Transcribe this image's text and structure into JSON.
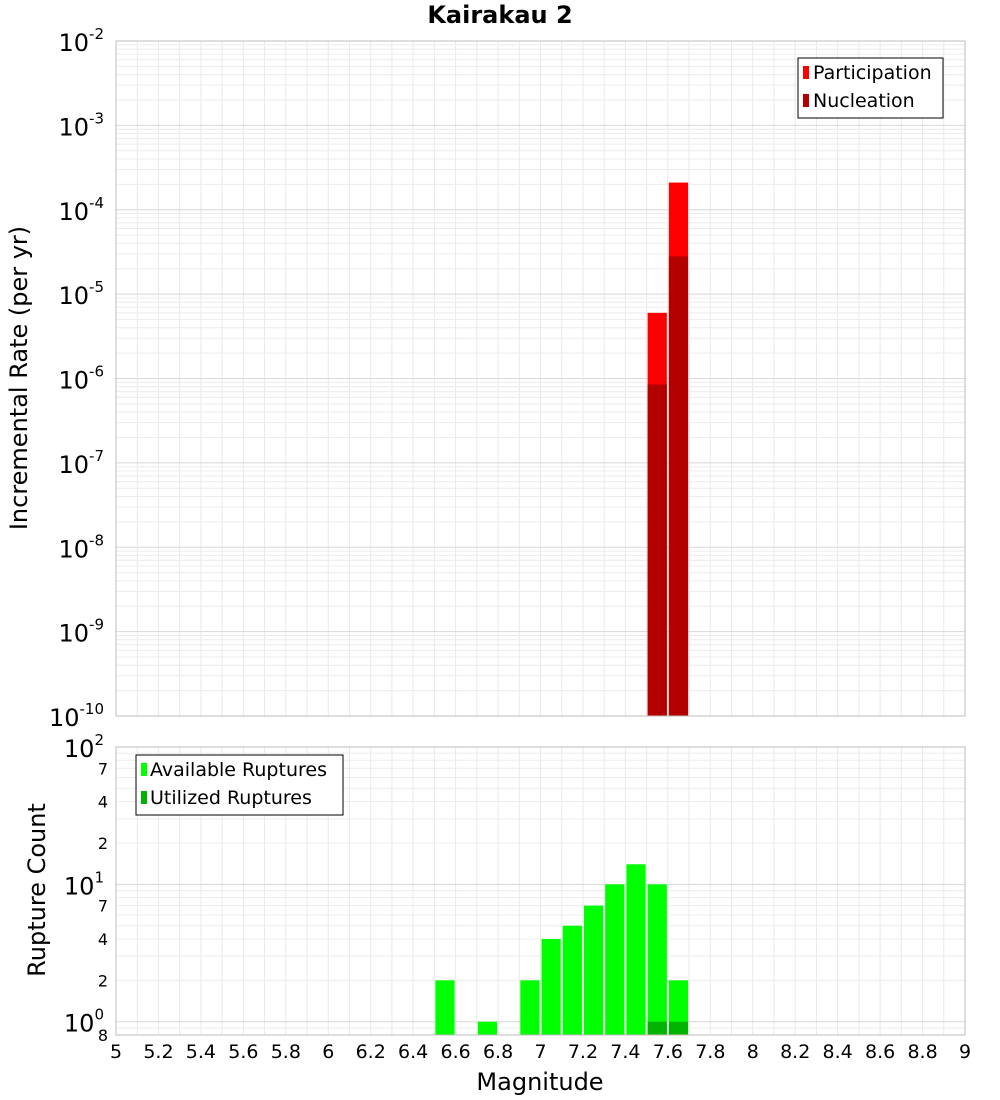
{
  "chart_data": [
    {
      "type": "bar",
      "title": "Kairakau 2",
      "ylabel": "Incremental Rate (per yr)",
      "yscale": "log",
      "ylim": [
        1e-10,
        0.01
      ],
      "xlim": [
        5,
        9
      ],
      "y_ticks": [
        {
          "base": "10",
          "exp": "-2"
        },
        {
          "base": "10",
          "exp": "-3"
        },
        {
          "base": "10",
          "exp": "-4"
        },
        {
          "base": "10",
          "exp": "-5"
        },
        {
          "base": "10",
          "exp": "-6"
        },
        {
          "base": "10",
          "exp": "-7"
        },
        {
          "base": "10",
          "exp": "-8"
        },
        {
          "base": "10",
          "exp": "-9"
        },
        {
          "base": "10",
          "exp": "-10"
        }
      ],
      "grid": true,
      "legend_position": "top-right",
      "series": [
        {
          "name": "Participation",
          "color": "#ff0000",
          "points": [
            {
              "x": 7.55,
              "y": 6e-06
            },
            {
              "x": 7.65,
              "y": 0.00021
            }
          ]
        },
        {
          "name": "Nucleation",
          "color": "#b30000",
          "points": [
            {
              "x": 7.55,
              "y": 8.5e-07
            },
            {
              "x": 7.65,
              "y": 2.8e-05
            }
          ]
        }
      ]
    },
    {
      "type": "bar",
      "xlabel": "Magnitude",
      "ylabel": "Rupture Count",
      "yscale": "log",
      "ylim": [
        0.8,
        100
      ],
      "xlim": [
        5,
        9
      ],
      "x_ticks": [
        "5",
        "5.2",
        "5.4",
        "5.6",
        "5.8",
        "6",
        "6.2",
        "6.4",
        "6.6",
        "6.8",
        "7",
        "7.2",
        "7.4",
        "7.6",
        "7.8",
        "8",
        "8.2",
        "8.4",
        "8.6",
        "8.8",
        "9"
      ],
      "y_major_ticks": [
        {
          "base": "10",
          "exp": "2"
        },
        {
          "base": "10",
          "exp": "1"
        },
        {
          "base": "10",
          "exp": "0"
        }
      ],
      "y_minor_ticks": [
        "7",
        "4",
        "2",
        "7",
        "4",
        "2",
        "8"
      ],
      "grid": true,
      "legend_position": "top-left",
      "series": [
        {
          "name": "Available Ruptures",
          "color": "#00ff00",
          "points": [
            {
              "x": 6.55,
              "y": 2
            },
            {
              "x": 6.75,
              "y": 1
            },
            {
              "x": 6.95,
              "y": 2
            },
            {
              "x": 7.05,
              "y": 4
            },
            {
              "x": 7.15,
              "y": 5
            },
            {
              "x": 7.25,
              "y": 7
            },
            {
              "x": 7.35,
              "y": 10
            },
            {
              "x": 7.45,
              "y": 14
            },
            {
              "x": 7.55,
              "y": 10
            },
            {
              "x": 7.65,
              "y": 2
            }
          ]
        },
        {
          "name": "Utilized Ruptures",
          "color": "#00b300",
          "points": [
            {
              "x": 7.55,
              "y": 1
            },
            {
              "x": 7.65,
              "y": 1
            }
          ]
        }
      ]
    }
  ]
}
